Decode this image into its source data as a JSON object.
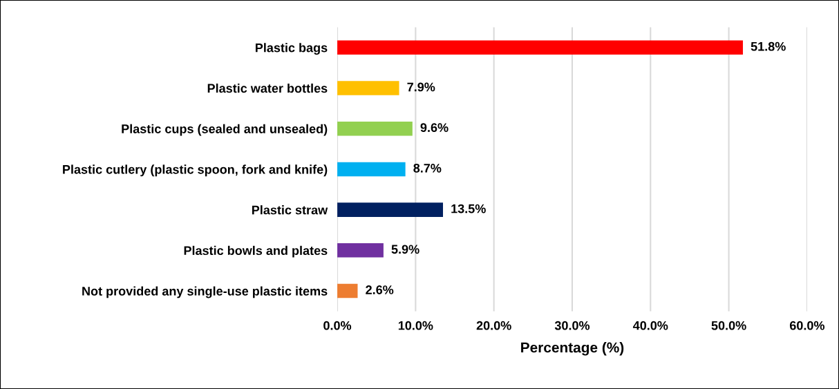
{
  "chart_data": {
    "type": "bar",
    "orientation": "horizontal",
    "categories": [
      "Plastic bags",
      "Plastic water bottles",
      "Plastic cups (sealed and unsealed)",
      "Plastic cutlery (plastic spoon, fork and knife)",
      "Plastic straw",
      "Plastic bowls and plates",
      "Not provided any single-use plastic items"
    ],
    "values": [
      51.8,
      7.9,
      9.6,
      8.7,
      13.5,
      5.9,
      2.6
    ],
    "colors": [
      "#ff0000",
      "#ffc000",
      "#92d050",
      "#00b0f0",
      "#002060",
      "#7030a0",
      "#ed7d31"
    ],
    "value_labels": [
      "51.8%",
      "7.9%",
      "9.6%",
      "8.7%",
      "13.5%",
      "5.9%",
      "2.6%"
    ],
    "xlabel": "Percentage (%)",
    "xlim": [
      0,
      60
    ],
    "xticks": [
      {
        "value": 0,
        "label": "0.0%"
      },
      {
        "value": 10,
        "label": "10.0%"
      },
      {
        "value": 20,
        "label": "20.0%"
      },
      {
        "value": 30,
        "label": "30.0%"
      },
      {
        "value": 40,
        "label": "40.0%"
      },
      {
        "value": 50,
        "label": "50.0%"
      },
      {
        "value": 60,
        "label": "60.0%"
      }
    ],
    "grid": "x"
  }
}
